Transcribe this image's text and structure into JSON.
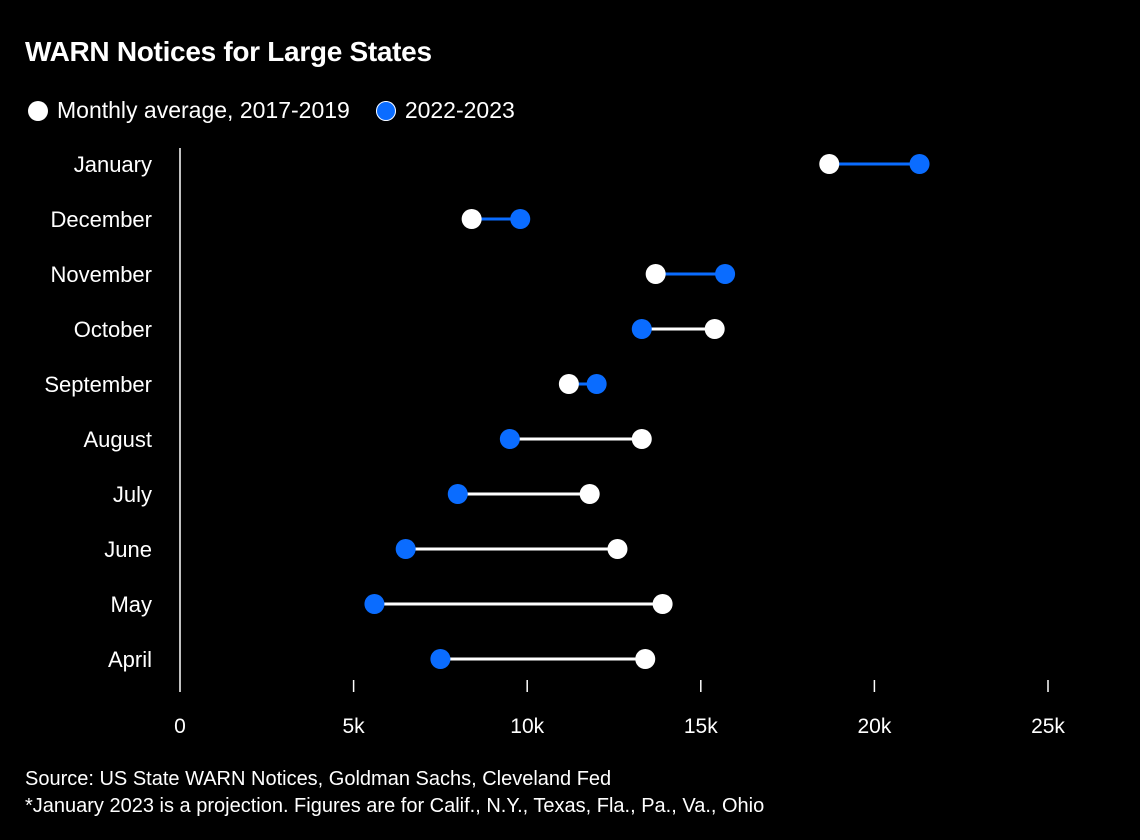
{
  "chart_data": {
    "type": "dumbbell",
    "title": "WARN Notices for Large States",
    "legend": [
      {
        "name": "Monthly average, 2017-2019",
        "color": "#ffffff"
      },
      {
        "name": "2022-2023",
        "color": "#0a6cff"
      }
    ],
    "categories": [
      "January",
      "December",
      "November",
      "October",
      "September",
      "August",
      "July",
      "June",
      "May",
      "April"
    ],
    "series": [
      {
        "name": "Monthly average, 2017-2019",
        "values": [
          18.7,
          8.4,
          13.7,
          15.4,
          11.2,
          13.3,
          11.8,
          12.6,
          13.9,
          13.4
        ]
      },
      {
        "name": "2022-2023",
        "values": [
          21.3,
          9.8,
          15.7,
          13.3,
          12.0,
          9.5,
          8.0,
          6.5,
          5.6,
          7.5
        ]
      }
    ],
    "units": "thousands",
    "xlim": [
      0,
      25
    ],
    "xticks": [
      0,
      5,
      10,
      15,
      20,
      25
    ],
    "xtick_labels": [
      "0",
      "5k",
      "10k",
      "15k",
      "20k",
      "25k"
    ],
    "xlabel": "",
    "ylabel": "",
    "legend_position": "top-left",
    "grid": false
  },
  "footer": {
    "source": "Source: US State WARN Notices, Goldman Sachs, Cleveland Fed",
    "note": "*January 2023 is a projection. Figures are for Calif., N.Y., Texas, Fla., Pa., Va., Ohio"
  }
}
